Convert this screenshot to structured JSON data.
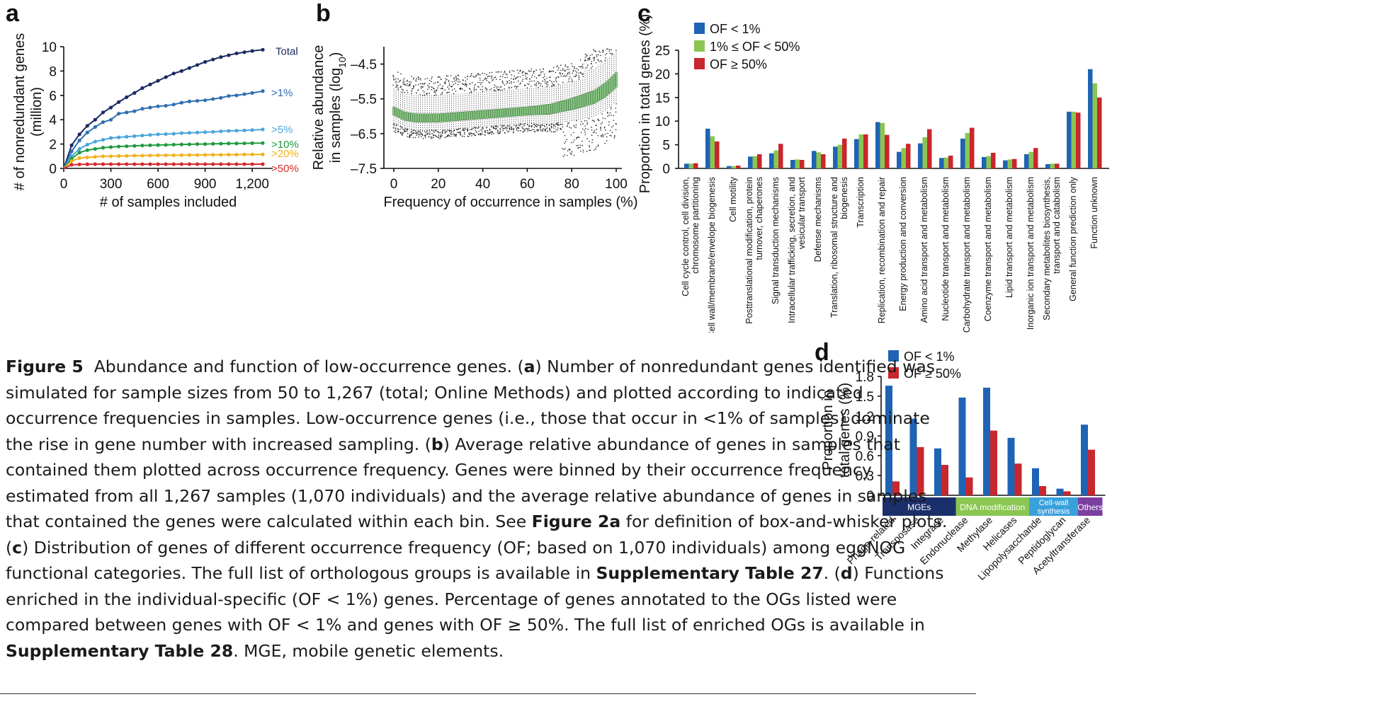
{
  "panels": {
    "a": "a",
    "b": "b",
    "c": "c",
    "d": "d"
  },
  "colors": {
    "total": "#1b2a63",
    "gt1": "#2f6fb3",
    "gt5": "#4aa5dc",
    "gt10": "#1f9a3f",
    "gt20": "#f2b21c",
    "gt50": "#d62a2a",
    "blue": "#1f63b4",
    "green": "#8ac651",
    "red": "#c8272d",
    "box": "#86c482",
    "mge": "#1b2f6a",
    "dna": "#8ac651",
    "cellwall": "#3aa0dc",
    "others": "#7b3fa0"
  },
  "chart_data": [
    {
      "id": "a",
      "type": "line",
      "xlabel": "# of samples included",
      "ylabel": "# of nonredundant genes (million)",
      "xlim": [
        0,
        1330
      ],
      "ylim": [
        0,
        10
      ],
      "xticks": [
        0,
        300,
        600,
        900,
        1200
      ],
      "xtick_labels": [
        "0",
        "300",
        "600",
        "900",
        "1,200"
      ],
      "yticks": [
        0,
        2,
        4,
        6,
        8,
        10
      ],
      "x": [
        0,
        50,
        100,
        150,
        200,
        250,
        300,
        350,
        400,
        450,
        500,
        550,
        600,
        650,
        700,
        750,
        800,
        850,
        900,
        950,
        1000,
        1050,
        1100,
        1150,
        1200,
        1267
      ],
      "series": [
        {
          "name": "Total",
          "color_key": "total",
          "values": [
            0,
            1.9,
            2.8,
            3.5,
            4.0,
            4.6,
            5.0,
            5.45,
            5.85,
            6.2,
            6.6,
            6.9,
            7.2,
            7.5,
            7.8,
            8.0,
            8.25,
            8.5,
            8.75,
            8.95,
            9.15,
            9.3,
            9.45,
            9.55,
            9.65,
            9.75
          ]
        },
        {
          "name": ">1%",
          "color_key": "gt1",
          "values": [
            0,
            1.4,
            2.3,
            2.95,
            3.4,
            3.8,
            4.0,
            4.5,
            4.6,
            4.7,
            4.9,
            5.0,
            5.1,
            5.15,
            5.25,
            5.4,
            5.5,
            5.55,
            5.6,
            5.7,
            5.8,
            5.95,
            6.0,
            6.1,
            6.2,
            6.35
          ]
        },
        {
          "name": ">5%",
          "color_key": "gt5",
          "values": [
            0,
            1.0,
            1.6,
            1.95,
            2.2,
            2.35,
            2.5,
            2.55,
            2.6,
            2.65,
            2.7,
            2.75,
            2.8,
            2.82,
            2.85,
            2.9,
            2.92,
            2.95,
            2.98,
            3.0,
            3.05,
            3.08,
            3.1,
            3.12,
            3.15,
            3.2
          ]
        },
        {
          "name": ">10%",
          "color_key": "gt10",
          "values": [
            0,
            0.8,
            1.3,
            1.5,
            1.6,
            1.7,
            1.75,
            1.8,
            1.82,
            1.85,
            1.88,
            1.9,
            1.92,
            1.93,
            1.95,
            1.97,
            1.98,
            2.0,
            2.0,
            2.02,
            2.03,
            2.05,
            2.05,
            2.06,
            2.07,
            2.08
          ]
        },
        {
          "name": ">20%",
          "color_key": "gt20",
          "values": [
            0,
            0.6,
            0.85,
            0.9,
            0.95,
            1.0,
            1.0,
            1.02,
            1.03,
            1.05,
            1.05,
            1.06,
            1.07,
            1.08,
            1.08,
            1.09,
            1.1,
            1.1,
            1.11,
            1.12,
            1.12,
            1.13,
            1.13,
            1.14,
            1.15,
            1.15
          ]
        },
        {
          "name": ">50%",
          "color_key": "gt50",
          "values": [
            0,
            0.3,
            0.33,
            0.34,
            0.35,
            0.35,
            0.35,
            0.35,
            0.35,
            0.35,
            0.35,
            0.35,
            0.35,
            0.35,
            0.35,
            0.35,
            0.35,
            0.35,
            0.35,
            0.35,
            0.35,
            0.35,
            0.35,
            0.35,
            0.35,
            0.35
          ]
        }
      ]
    },
    {
      "id": "b",
      "type": "box",
      "xlabel": "Frequency of occurrence in samples (%)",
      "ylabel": "Relative abundance in samples (log10)",
      "ylabel_line1": "Relative abundance",
      "ylabel_line2_prefix": "in samples (log",
      "ylabel_line2_sub": "10",
      "ylabel_line2_suffix": ")",
      "xlim": [
        0,
        100
      ],
      "ylim": [
        -7.5,
        -4.0
      ],
      "xticks": [
        0,
        20,
        40,
        60,
        80,
        100
      ],
      "yticks": [
        -4.5,
        -5.5,
        -6.5,
        -7.5
      ],
      "ytick_labels": [
        "–4.5",
        "–5.5",
        "–6.5",
        "–7.5"
      ],
      "median_x": [
        0,
        5,
        10,
        20,
        30,
        40,
        50,
        60,
        70,
        80,
        85,
        90,
        95,
        100
      ],
      "median_y": [
        -5.85,
        -6.0,
        -6.05,
        -6.05,
        -6.0,
        -5.95,
        -5.9,
        -5.85,
        -5.8,
        -5.65,
        -5.55,
        -5.45,
        -5.25,
        -4.95
      ],
      "q1_offset": -0.12,
      "q3_offset": 0.12,
      "whisker_low_offset": -0.35,
      "whisker_high_offset": 0.65
    },
    {
      "id": "c",
      "type": "bar",
      "ylabel": "Proportion in total genes (%)",
      "ylim": [
        0,
        25
      ],
      "yticks": [
        0,
        5,
        10,
        15,
        20,
        25
      ],
      "legend": [
        "OF < 1%",
        "1% ≤ OF < 50%",
        "OF ≥ 50%"
      ],
      "categories": [
        [
          "Cell cycle control, cell division,",
          "chromosome partitioning"
        ],
        [
          "Cell wall/membrane/envelope biogenesis"
        ],
        [
          "Cell motility"
        ],
        [
          "Posttranslational modification, protein",
          "turnover, chaperones"
        ],
        [
          "Signal transduction mechanisms"
        ],
        [
          "Intracellular trafficking, secretion, and",
          "vesicular transport"
        ],
        [
          "Defense mechanisms"
        ],
        [
          "Translation, ribosomal structure and",
          "biogenesis"
        ],
        [
          "Transcription"
        ],
        [
          "Replication, recombination and repair"
        ],
        [
          "Energy production and conversion"
        ],
        [
          "Amino acid transport and metabolism"
        ],
        [
          "Nucleotide transport and metabolism"
        ],
        [
          "Carbohydrate transport and metabolism"
        ],
        [
          "Coenzyme transport and metabolism"
        ],
        [
          "Lipid transport and metabolism"
        ],
        [
          "Inorganic ion transport and metabolism"
        ],
        [
          "Secondary metabolites biosynthesis,",
          "transport and catabolism"
        ],
        [
          "General function prediction only"
        ],
        [
          "Function unknown"
        ]
      ],
      "series": [
        {
          "name": "OF < 1%",
          "color_key": "blue",
          "values": [
            1.0,
            8.4,
            0.5,
            2.5,
            3.2,
            1.8,
            3.7,
            4.6,
            6.2,
            9.8,
            3.5,
            5.3,
            2.2,
            6.3,
            2.4,
            1.7,
            3.0,
            0.9,
            12.0,
            21.0
          ]
        },
        {
          "name": "1% ≤ OF < 50%",
          "color_key": "green",
          "values": [
            1.0,
            6.8,
            0.5,
            2.6,
            3.8,
            1.9,
            3.4,
            5.0,
            7.2,
            9.6,
            4.3,
            6.6,
            2.3,
            7.5,
            2.6,
            1.9,
            3.5,
            1.0,
            12.0,
            18.0
          ]
        },
        {
          "name": "OF ≥ 50%",
          "color_key": "red",
          "values": [
            1.1,
            5.7,
            0.6,
            3.0,
            5.2,
            1.8,
            3.0,
            6.3,
            7.2,
            7.1,
            5.2,
            8.3,
            2.7,
            8.6,
            3.3,
            2.0,
            4.3,
            1.0,
            11.8,
            15.0
          ]
        }
      ]
    },
    {
      "id": "d",
      "type": "bar",
      "ylabel": "Proportion in total genes (%)",
      "ylabel_line1": "Proportion in",
      "ylabel_line2": "total genes (%)",
      "ylim": [
        0,
        1.8
      ],
      "yticks": [
        0,
        0.3,
        0.6,
        0.9,
        1.2,
        1.5,
        1.8
      ],
      "legend": [
        "OF < 1%",
        "OF ≥ 50%"
      ],
      "categories": [
        "Phage-related",
        "Transposase",
        "Integrase",
        "Endonuclease",
        "Methylase",
        "Helicases",
        "Lipopolysacchande",
        "Peptidoglycan",
        "Acetyltransferase"
      ],
      "groups": [
        {
          "label": "MGEs",
          "color_key": "mge",
          "span": [
            0,
            2
          ]
        },
        {
          "label": "DNA modification",
          "color_key": "dna",
          "span": [
            3,
            5
          ]
        },
        {
          "label": "Cell-wall synthesis",
          "label_line1": "Cell-wall",
          "label_line2": "synthesis",
          "color_key": "cellwall",
          "span": [
            6,
            7
          ]
        },
        {
          "label": "Others",
          "color_key": "others",
          "span": [
            8,
            8
          ]
        }
      ],
      "series": [
        {
          "name": "OF < 1%",
          "color_key": "blue",
          "values": [
            1.66,
            1.16,
            0.71,
            1.48,
            1.63,
            0.87,
            0.41,
            0.1,
            1.07
          ]
        },
        {
          "name": "OF ≥ 50%",
          "color_key": "red",
          "values": [
            0.21,
            0.73,
            0.46,
            0.27,
            0.98,
            0.48,
            0.14,
            0.06,
            0.69
          ]
        }
      ]
    }
  ],
  "caption": {
    "fig": "Figure 5",
    "s1": "Abundance and function of low-occurrence genes. (",
    "a": "a",
    "s2": ") Number of nonredundant genes identified was simulated for sample sizes from 50 to 1,267 (total; Online Methods) and plotted according to indicated occurrence frequencies in samples. Low-occurrence genes (i.e., those that occur in <1% of samples) dominate the rise in gene number with increased sampling. (",
    "b": "b",
    "s3": ") Average relative abundance of genes in samples that contained them plotted across occurrence frequency. Genes were binned by their occurrence frequency estimated from all 1,267 samples (1,070 individuals) and the average relative abundance of genes in samples that contained the genes were calculated within each bin. See ",
    "fig2a": "Figure 2a",
    "s4": " for definition of box-and-whisker plots. (",
    "c": "c",
    "s5": ") Distribution of genes of different occurrence frequency (OF; based on 1,070 individuals) among eggNOG functional categories. The full list of orthologous groups is available in ",
    "st27": "Supplementary Table 27",
    "s6": ". (",
    "d": "d",
    "s7": ") Functions enriched in the individual-specific (OF < 1%) genes. Percentage of genes annotated to the OGs listed were compared between genes with OF < 1% and genes with OF ≥ 50%. The full list of enriched OGs is available in ",
    "st28": "Supplementary Table 28",
    "s8": ". MGE, mobile genetic elements."
  }
}
